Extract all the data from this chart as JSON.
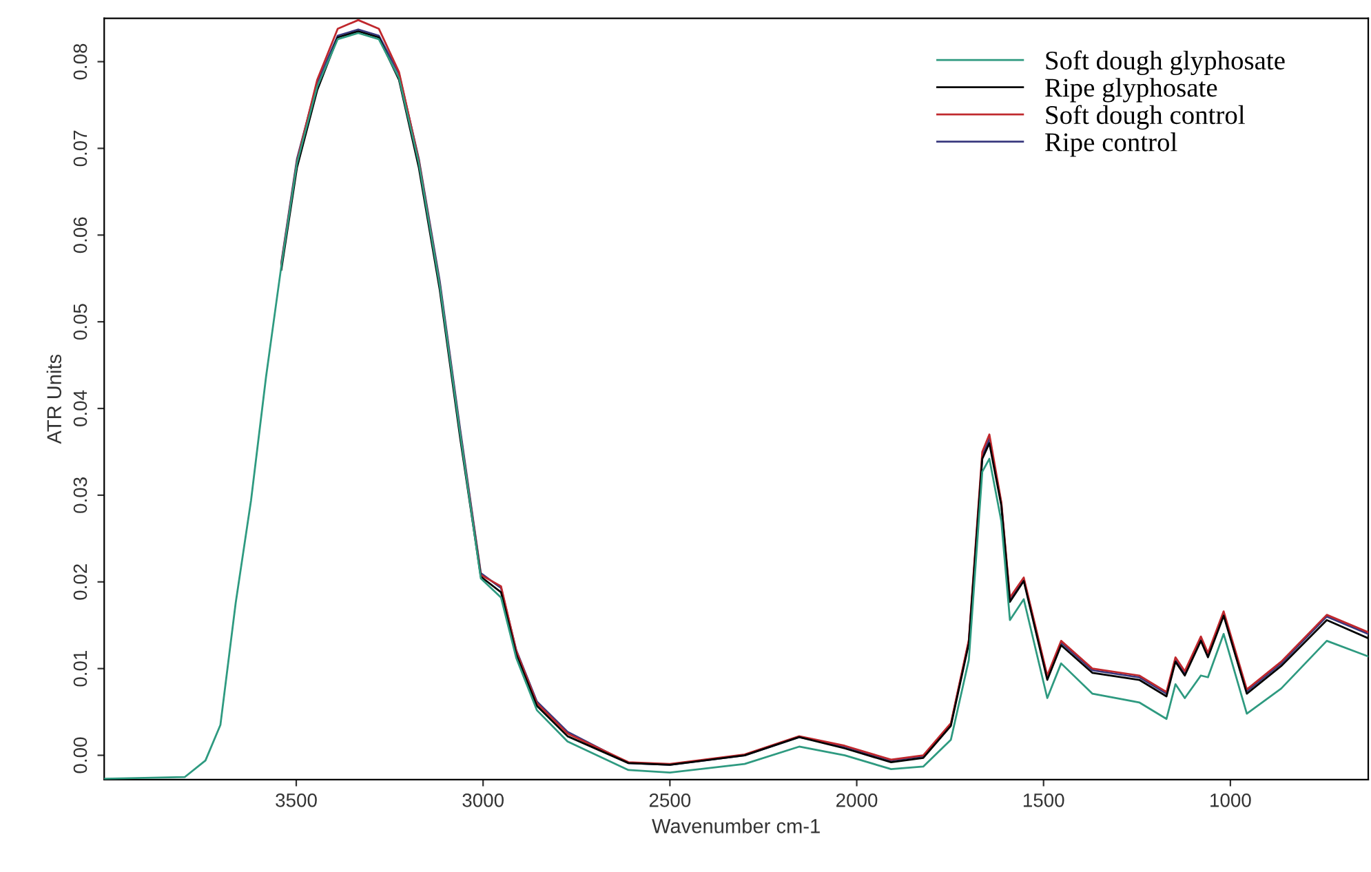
{
  "chart_data": {
    "type": "line",
    "xlabel": "Wavenumber cm-1",
    "ylabel": "ATR Units",
    "x": [
      4014,
      3798,
      3743,
      3703,
      3662,
      3621,
      3581,
      3540,
      3498,
      3444,
      3389,
      3334,
      3279,
      3225,
      3172,
      3116,
      3061,
      3006,
      2952,
      2911,
      2856,
      2774,
      2611,
      2500,
      2300,
      2154,
      2032,
      1908,
      1822,
      1748,
      1700,
      1664,
      1645,
      1613,
      1590,
      1553,
      1490,
      1453,
      1369,
      1244,
      1171,
      1147,
      1122,
      1079,
      1060,
      1018,
      956,
      864,
      742,
      631
    ],
    "series": [
      {
        "name": "Soft dough glyphosate",
        "color": "#2e9a80",
        "values": [
          -0.0027,
          -0.0025,
          -0.0006,
          0.0035,
          0.0176,
          0.0294,
          0.0436,
          0.0564,
          0.0683,
          0.0771,
          0.0826,
          0.0833,
          0.0826,
          0.0781,
          0.0683,
          0.0542,
          0.037,
          0.0204,
          0.0182,
          0.0112,
          0.0052,
          0.0016,
          -0.0017,
          -0.002,
          -0.001,
          0.001,
          0.0,
          -0.0016,
          -0.0013,
          0.0018,
          0.011,
          0.0327,
          0.0342,
          0.027,
          0.0156,
          0.018,
          0.0066,
          0.0106,
          0.0071,
          0.0061,
          0.0042,
          0.0082,
          0.0066,
          0.0092,
          0.009,
          0.014,
          0.0048,
          0.0077,
          0.0132,
          0.0114
        ]
      },
      {
        "name": "Ripe glyphosate",
        "color": "#000000",
        "values": [
          null,
          null,
          null,
          null,
          null,
          null,
          null,
          0.056,
          0.0678,
          0.0767,
          0.0828,
          0.0835,
          0.0828,
          0.0779,
          0.0678,
          0.0537,
          0.0365,
          0.0206,
          0.0188,
          0.0116,
          0.0057,
          0.0022,
          -0.0009,
          -0.0011,
          0.0,
          0.0021,
          0.0008,
          -0.0008,
          -0.0003,
          0.0034,
          0.0129,
          0.0342,
          0.036,
          0.0288,
          0.0177,
          0.0201,
          0.0087,
          0.0127,
          0.0095,
          0.0087,
          0.0068,
          0.0108,
          0.0092,
          0.0132,
          0.0113,
          0.0161,
          0.0071,
          0.0103,
          0.0156,
          0.0135
        ]
      },
      {
        "name": "Soft dough control",
        "color": "#c0282d",
        "values": [
          null,
          null,
          null,
          null,
          null,
          null,
          null,
          0.0566,
          0.0685,
          0.0779,
          0.0838,
          0.0848,
          0.0838,
          0.0788,
          0.0686,
          0.0543,
          0.0371,
          0.0208,
          0.0195,
          0.012,
          0.006,
          0.0025,
          -0.0008,
          -0.001,
          0.0001,
          0.0022,
          0.0011,
          -0.0005,
          0.0,
          0.0037,
          0.0133,
          0.035,
          0.037,
          0.0292,
          0.0182,
          0.0205,
          0.0092,
          0.0132,
          0.01,
          0.0092,
          0.0073,
          0.0113,
          0.0097,
          0.0137,
          0.0118,
          0.0166,
          0.0076,
          0.0108,
          0.0162,
          0.0142
        ]
      },
      {
        "name": "Ripe control",
        "color": "#38387e",
        "values": [
          null,
          null,
          null,
          null,
          null,
          null,
          null,
          0.0568,
          0.0688,
          0.0776,
          0.083,
          0.0837,
          0.083,
          0.0786,
          0.0688,
          0.0547,
          0.0375,
          0.021,
          0.0193,
          0.0121,
          0.0062,
          0.0027,
          -0.0009,
          -0.0011,
          0.0,
          0.0021,
          0.001,
          -0.0006,
          -0.0001,
          0.0036,
          0.0131,
          0.0345,
          0.0365,
          0.029,
          0.018,
          0.0203,
          0.009,
          0.013,
          0.0098,
          0.009,
          0.0071,
          0.0111,
          0.0095,
          0.0135,
          0.0116,
          0.0164,
          0.0074,
          0.0106,
          0.016,
          0.014
        ]
      }
    ],
    "xlim": [
      4014,
      631
    ],
    "xticks": [
      3500,
      3000,
      2500,
      2000,
      1500,
      1000
    ],
    "ylim": [
      -0.0028,
      0.085
    ],
    "yticks": [
      {
        "value": 0,
        "label": "0.00"
      },
      {
        "value": 0.01,
        "label": "0.01"
      },
      {
        "value": 0.02,
        "label": "0.02"
      },
      {
        "value": 0.03,
        "label": "0.03"
      },
      {
        "value": 0.04,
        "label": "0.04"
      },
      {
        "value": 0.05,
        "label": "0.05"
      },
      {
        "value": 0.06,
        "label": "0.06"
      },
      {
        "value": 0.07,
        "label": "0.07"
      },
      {
        "value": 0.08,
        "label": "0.08"
      }
    ],
    "legend": "top right",
    "grid": false,
    "marker": "none",
    "line_style": "solid"
  }
}
